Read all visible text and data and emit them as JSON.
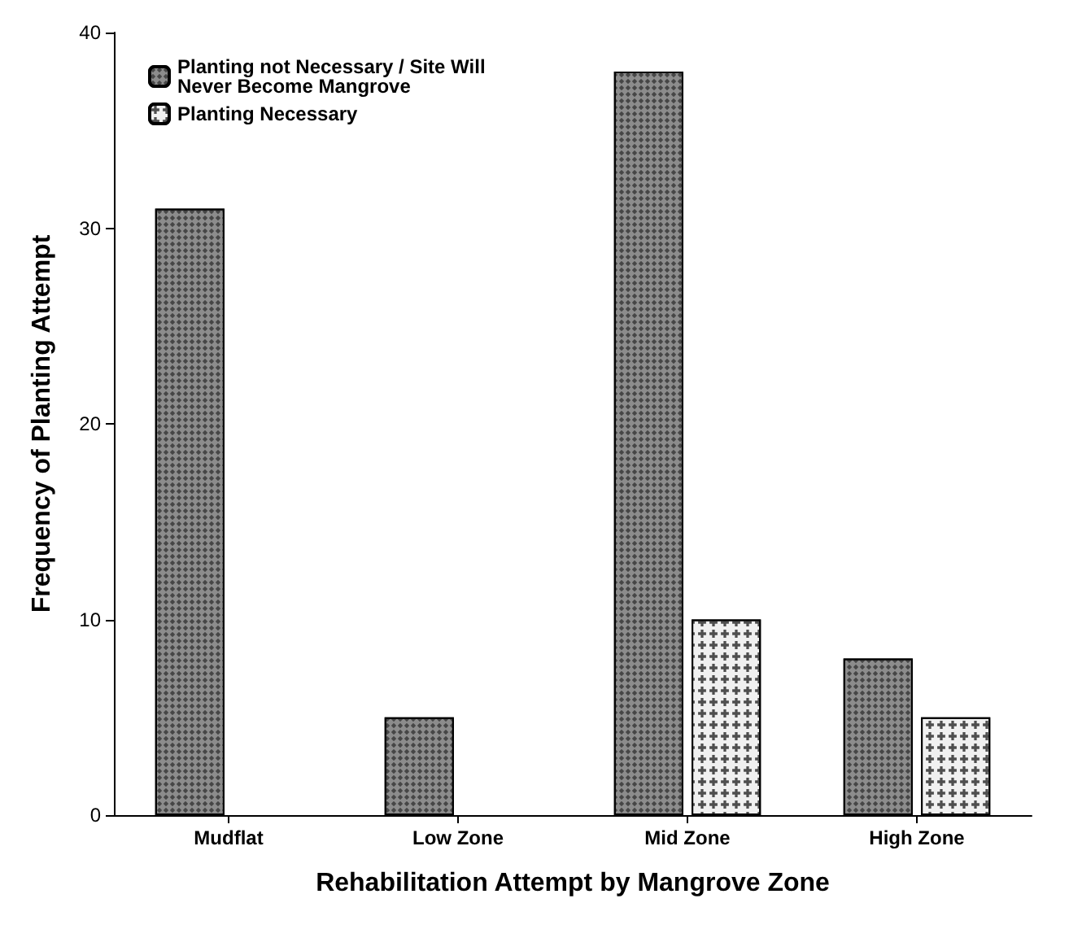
{
  "chart_data": {
    "type": "bar",
    "xlabel": "Rehabilitation Attempt by Mangrove Zone",
    "ylabel": "Frequency of Planting Attempt",
    "categories": [
      "Mudflat",
      "Low Zone",
      "Mid Zone",
      "High Zone"
    ],
    "series": [
      {
        "name": "Planting not Necessary / Site Will Never Become Mangrove",
        "color": "#8c8c8c",
        "values": [
          31,
          5,
          38,
          8
        ]
      },
      {
        "name": "Planting Necessary",
        "color": "#f0f0f0",
        "values": [
          null,
          null,
          10,
          5
        ]
      }
    ],
    "ylim": [
      0,
      40
    ],
    "yticks": [
      0,
      10,
      20,
      30,
      40
    ],
    "grid": false,
    "legend": "top left"
  }
}
